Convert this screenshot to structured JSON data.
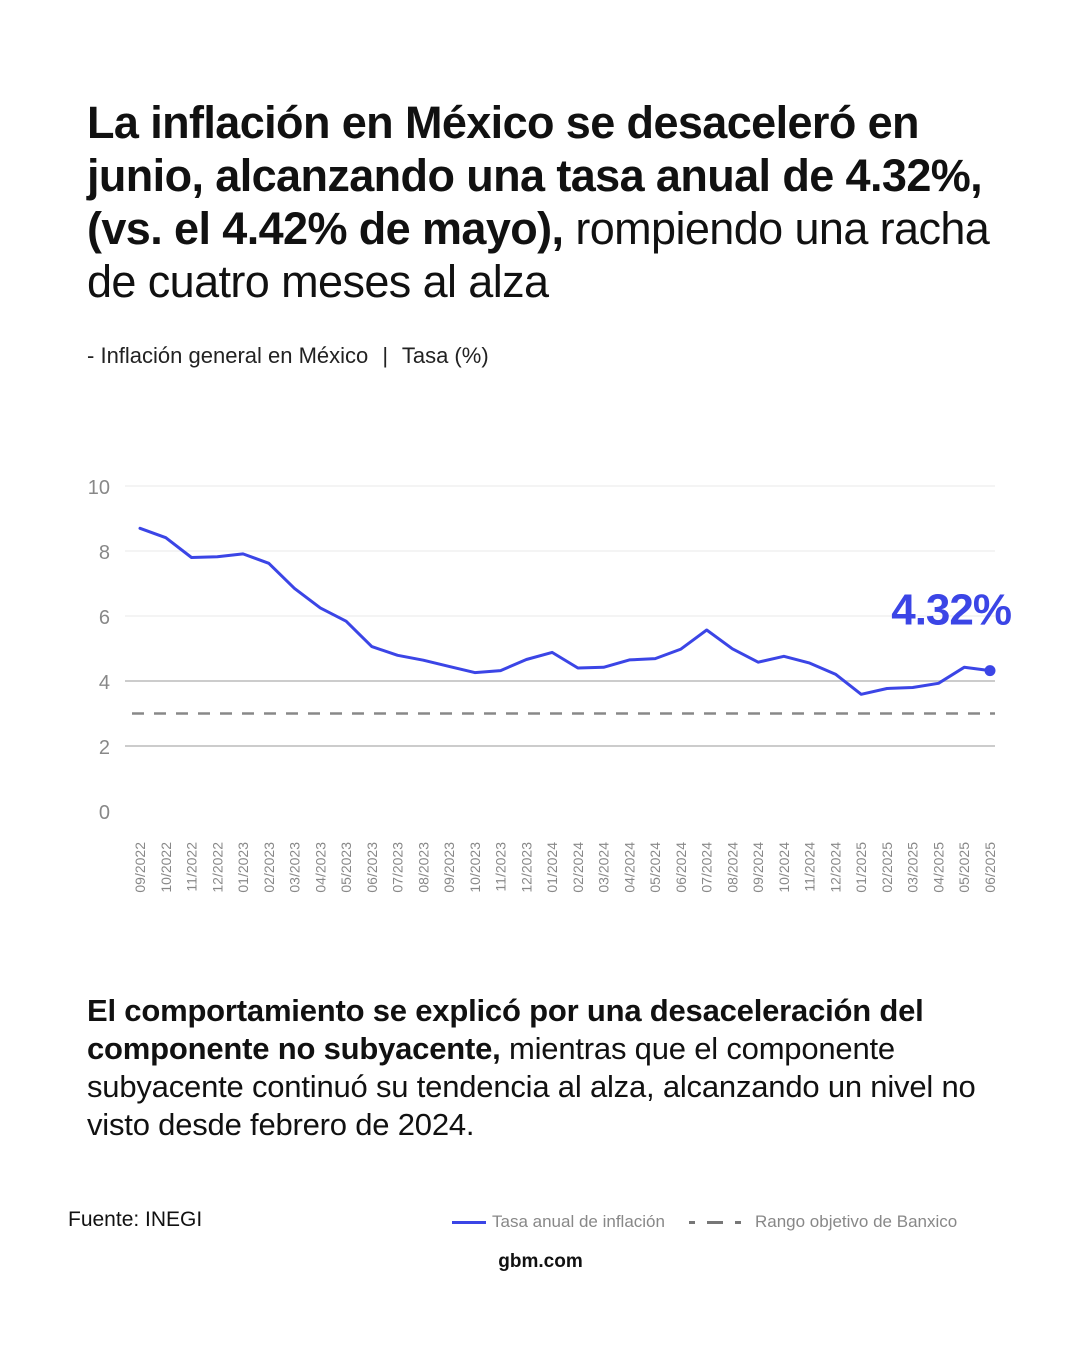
{
  "headline": {
    "bold": "La inflación en México se desaceleró en junio, alcanzando una tasa anual de 4.32%, (vs. el 4.42% de mayo),",
    "regular": " rompiendo una racha de cuatro meses al alza"
  },
  "subtitle": {
    "dash": "-",
    "series": "Inflación general en México",
    "sep": "|",
    "unit": "Tasa (%)"
  },
  "chart_data": {
    "type": "line",
    "categories": [
      "09/2022",
      "10/2022",
      "11/2022",
      "12/2022",
      "01/2023",
      "02/2023",
      "03/2023",
      "04/2023",
      "05/2023",
      "06/2023",
      "07/2023",
      "08/2023",
      "09/2023",
      "10/2023",
      "11/2023",
      "12/2023",
      "01/2024",
      "02/2024",
      "03/2024",
      "04/2024",
      "05/2024",
      "06/2024",
      "07/2024",
      "08/2024",
      "09/2024",
      "10/2024",
      "11/2024",
      "12/2024",
      "01/2025",
      "02/2025",
      "03/2025",
      "04/2025",
      "05/2025",
      "06/2025"
    ],
    "series": [
      {
        "name": "Tasa anual de inflación",
        "color": "#3b45e6",
        "values": [
          8.7,
          8.41,
          7.8,
          7.82,
          7.91,
          7.62,
          6.85,
          6.25,
          5.84,
          5.06,
          4.79,
          4.64,
          4.45,
          4.26,
          4.32,
          4.66,
          4.88,
          4.4,
          4.42,
          4.65,
          4.69,
          4.98,
          5.57,
          4.99,
          4.58,
          4.76,
          4.55,
          4.21,
          3.59,
          3.77,
          3.8,
          3.93,
          4.42,
          4.32
        ]
      }
    ],
    "target_line": {
      "name": "Rango objetivo de Banxico",
      "value": 3,
      "color": "#888888"
    },
    "yticks": [
      "0",
      "2",
      "4",
      "6",
      "8",
      "10"
    ],
    "ylim": [
      0,
      10
    ],
    "callout": "4.32%",
    "callout_color": "#3b45e6",
    "grid": true
  },
  "body": {
    "bold": "El comportamiento se explicó por una desaceleración del componente no subyacente,",
    "regular": " mientras que el componente subyacente continuó su tendencia al alza, alcanzando un nivel no visto desde febrero de 2024."
  },
  "source": "Fuente: INEGI",
  "legend": {
    "line_label": "Tasa anual de inflación",
    "dash_label": "Rango objetivo de Banxico"
  },
  "footer": "gbm.com"
}
